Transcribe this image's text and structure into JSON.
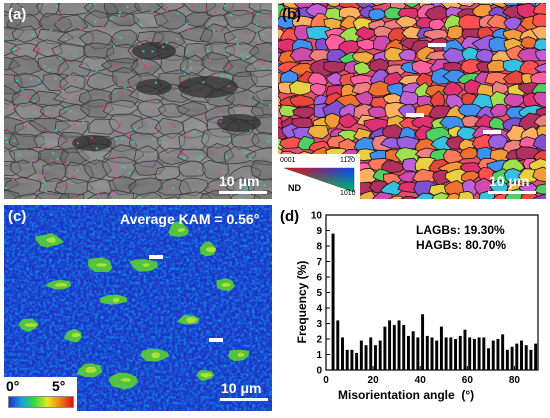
{
  "figure": {
    "panel_a": {
      "label": "(a)",
      "scale_bar": "10 μm"
    },
    "panel_b": {
      "label": "(b)",
      "scale_bar": "10 μm",
      "ipf_key": {
        "direction": "ND",
        "corner_0001": "0001",
        "corner_11_20": "11̅2̅0",
        "corner_10_10": "10̅10"
      }
    },
    "panel_c": {
      "label": "(c)",
      "scale_bar": "10 μm",
      "title": "Average KAM = 0.56°",
      "colorbar": {
        "min_label": "0°",
        "max_label": "5°"
      }
    },
    "panel_d": {
      "label": "(d)",
      "legend": [
        "LAGBs: 19.30%",
        "HAGBs: 80.70%"
      ]
    }
  },
  "chart_data": {
    "type": "bar",
    "xlabel": "Misorientation angle  (°)",
    "ylabel": "Frequency (%)",
    "xlim": [
      0,
      90
    ],
    "ylim": [
      0,
      10
    ],
    "xticks": [
      0,
      20,
      40,
      60,
      80
    ],
    "yticks": [
      0,
      1,
      2,
      3,
      4,
      5,
      6,
      7,
      8,
      9,
      10
    ],
    "bar_color": "#000000",
    "x": [
      3,
      5,
      7,
      9,
      11,
      13,
      15,
      17,
      19,
      21,
      23,
      25,
      27,
      29,
      31,
      33,
      35,
      37,
      39,
      41,
      43,
      45,
      47,
      49,
      51,
      53,
      55,
      57,
      59,
      61,
      63,
      65,
      67,
      69,
      71,
      73,
      75,
      77,
      79,
      81,
      83,
      85,
      87,
      89
    ],
    "values": [
      8.8,
      3.2,
      2.1,
      1.3,
      1.3,
      1.1,
      1.9,
      1.6,
      2.1,
      1.6,
      1.9,
      2.8,
      3.2,
      2.9,
      3.2,
      2.9,
      2.2,
      2.5,
      2.1,
      3.6,
      2.2,
      2.1,
      1.9,
      2.8,
      2.1,
      2.1,
      2.0,
      2.2,
      2.6,
      2.1,
      2.0,
      2.1,
      2.1,
      1.4,
      1.9,
      2.0,
      2.3,
      1.3,
      1.5,
      1.7,
      1.9,
      1.6,
      1.3,
      1.7
    ]
  }
}
